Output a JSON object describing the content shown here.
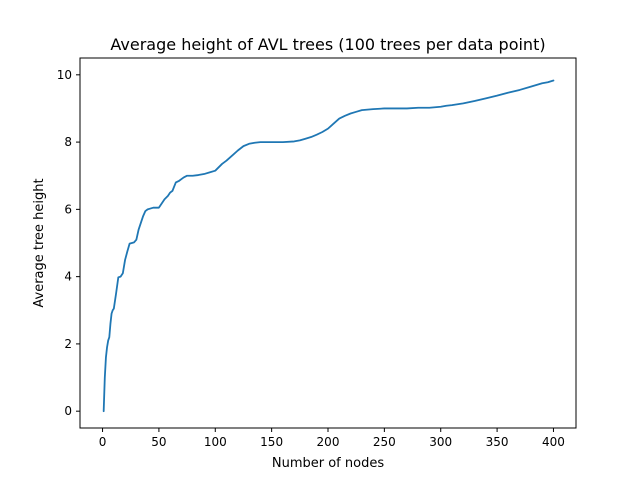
{
  "chart_data": {
    "type": "line",
    "title": "Average height of AVL trees (100 trees per data point)",
    "xlabel": "Number of nodes",
    "ylabel": "Average tree height",
    "xlim": [
      -20,
      420
    ],
    "ylim": [
      -0.5,
      10.5
    ],
    "xticks": [
      0,
      50,
      100,
      150,
      200,
      250,
      300,
      350,
      400
    ],
    "yticks": [
      0,
      2,
      4,
      6,
      8,
      10
    ],
    "grid": false,
    "series": [
      {
        "name": "Average tree height",
        "color": "#1f77b4",
        "x": [
          1,
          2,
          3,
          4,
          5,
          6,
          7,
          8,
          9,
          10,
          12,
          14,
          16,
          18,
          20,
          22,
          24,
          26,
          28,
          30,
          32,
          34,
          36,
          38,
          40,
          42,
          45,
          50,
          55,
          58,
          60,
          62,
          65,
          68,
          70,
          72,
          75,
          78,
          80,
          85,
          90,
          95,
          100,
          103,
          106,
          110,
          115,
          120,
          125,
          130,
          135,
          140,
          150,
          160,
          170,
          175,
          180,
          185,
          190,
          195,
          200,
          205,
          210,
          215,
          220,
          225,
          230,
          240,
          250,
          260,
          270,
          280,
          290,
          300,
          305,
          310,
          320,
          330,
          340,
          350,
          360,
          370,
          380,
          390,
          395,
          400
        ],
        "y": [
          0,
          1.0,
          1.6,
          1.9,
          2.1,
          2.2,
          2.6,
          2.9,
          3.0,
          3.05,
          3.5,
          3.98,
          4.0,
          4.1,
          4.5,
          4.75,
          4.98,
          5.0,
          5.02,
          5.1,
          5.4,
          5.6,
          5.8,
          5.95,
          6.0,
          6.02,
          6.05,
          6.05,
          6.3,
          6.4,
          6.5,
          6.55,
          6.8,
          6.85,
          6.9,
          6.95,
          7.0,
          7.0,
          7.0,
          7.02,
          7.05,
          7.1,
          7.15,
          7.25,
          7.35,
          7.45,
          7.6,
          7.75,
          7.88,
          7.95,
          7.98,
          8.0,
          8.0,
          8.0,
          8.02,
          8.05,
          8.1,
          8.15,
          8.22,
          8.3,
          8.4,
          8.55,
          8.7,
          8.78,
          8.85,
          8.9,
          8.95,
          8.98,
          9.0,
          9.0,
          9.0,
          9.02,
          9.02,
          9.05,
          9.08,
          9.1,
          9.15,
          9.22,
          9.3,
          9.38,
          9.47,
          9.55,
          9.65,
          9.75,
          9.78,
          9.83
        ]
      }
    ]
  }
}
